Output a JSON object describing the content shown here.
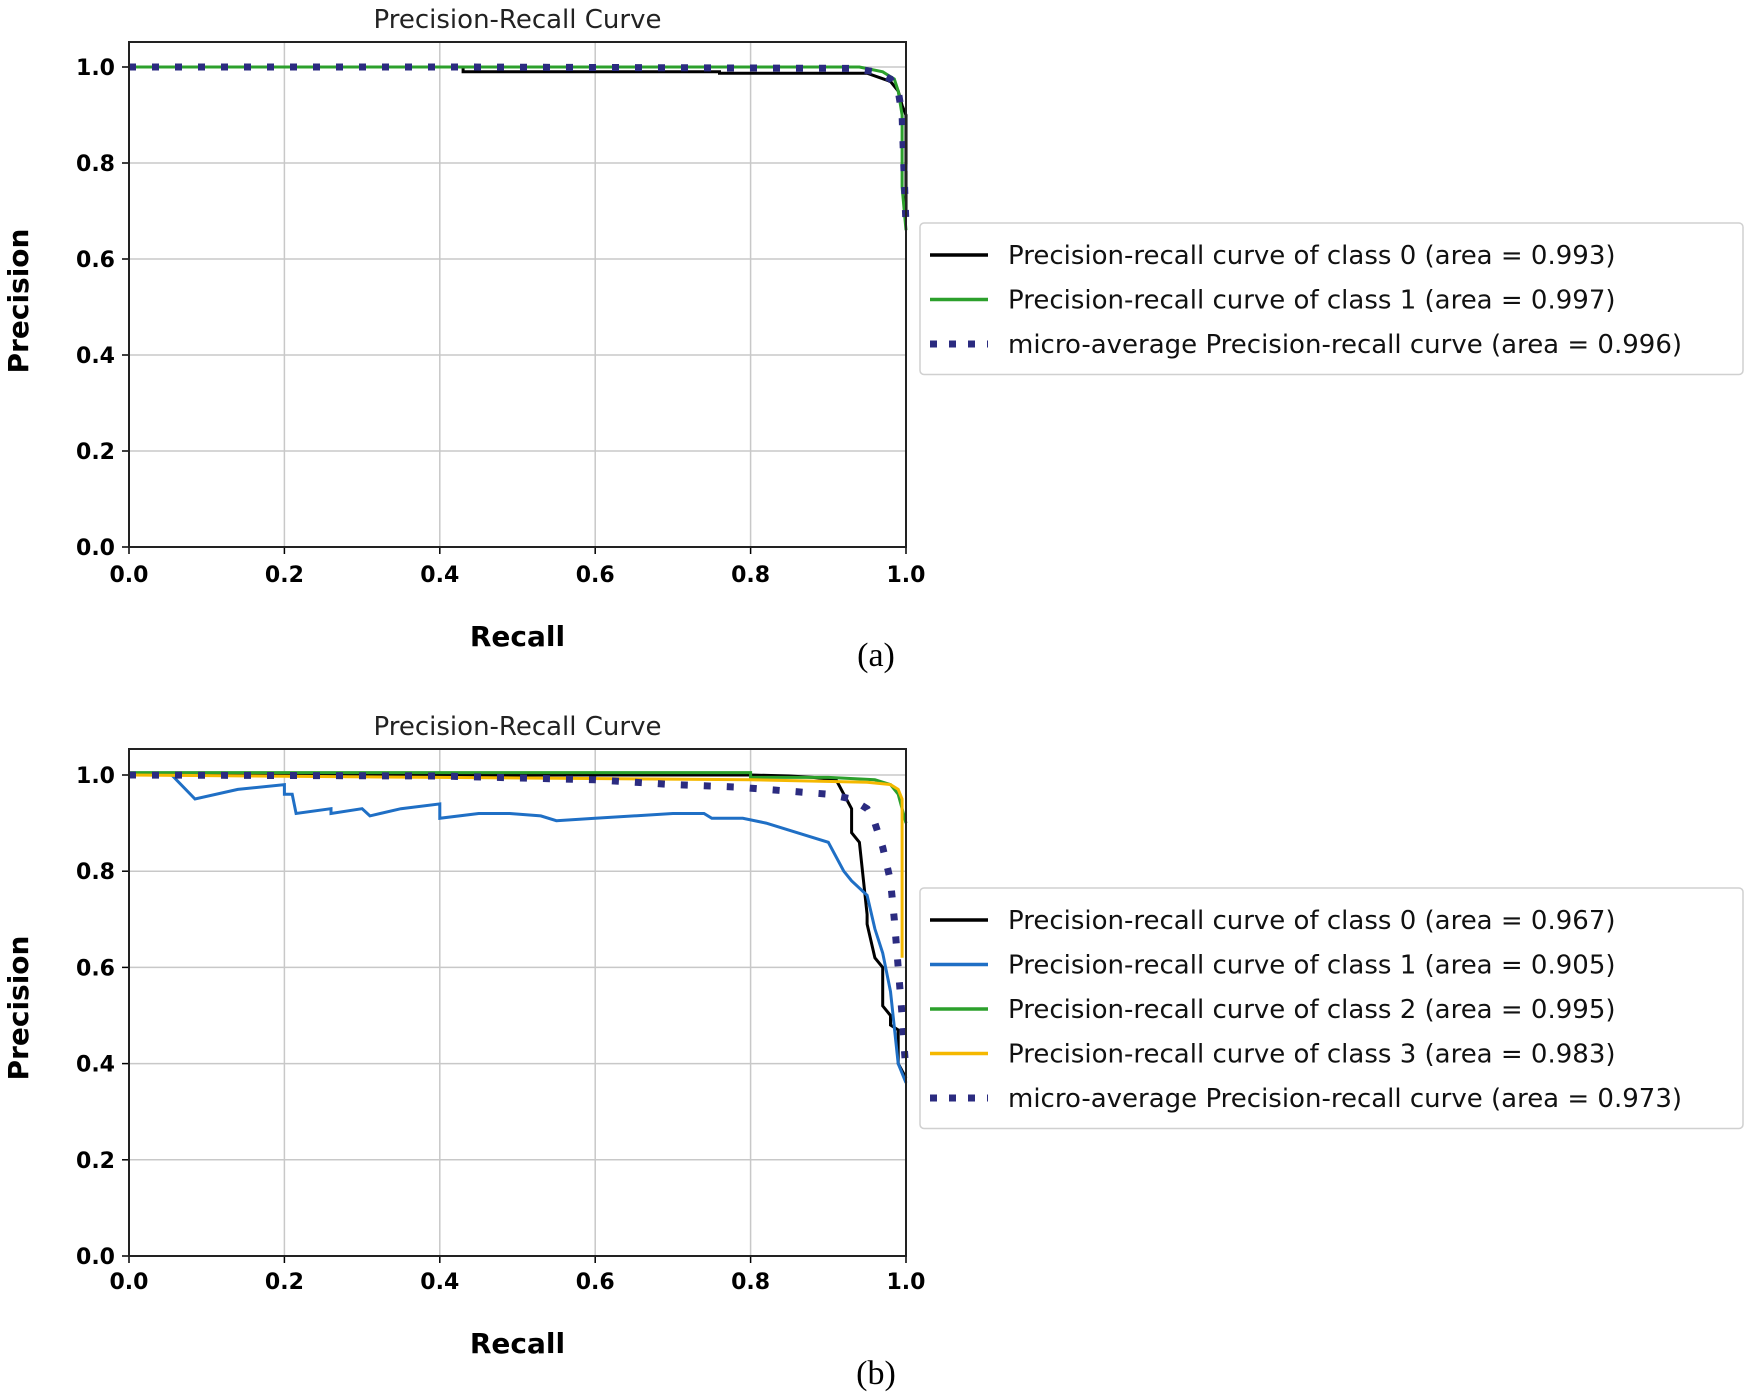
{
  "chart_data": [
    {
      "type": "line",
      "panel": "(a)",
      "title": "Precision-Recall Curve",
      "xlabel": "Recall",
      "ylabel": "Precision",
      "xlim": [
        0,
        1
      ],
      "ylim": [
        0,
        1.05
      ],
      "xticks": [
        "0.0",
        "0.2",
        "0.4",
        "0.6",
        "0.8",
        "1.0"
      ],
      "yticks": [
        "0.0",
        "0.2",
        "0.4",
        "0.6",
        "0.8",
        "1.0"
      ],
      "grid": true,
      "legend_position": "right-outside",
      "series": [
        {
          "name": "Precision-recall curve of class 0 (area = 0.993)",
          "color": "#000000",
          "dash": "solid",
          "x": [
            0,
            0.43,
            0.43,
            0.76,
            0.76,
            0.95,
            0.98,
            0.99,
            0.995,
            1.0,
            1.0
          ],
          "y": [
            1,
            1,
            0.99,
            0.99,
            0.987,
            0.987,
            0.97,
            0.95,
            0.92,
            0.9,
            0.7
          ]
        },
        {
          "name": "Precision-recall curve of class 1 (area = 0.997)",
          "color": "#2ca02c",
          "dash": "solid",
          "x": [
            0,
            0.94,
            0.97,
            0.985,
            0.99,
            0.995,
            0.995,
            1.0
          ],
          "y": [
            1,
            1,
            0.99,
            0.975,
            0.95,
            0.9,
            0.75,
            0.66
          ]
        },
        {
          "name": "micro-average Precision-recall curve (area = 0.996)",
          "color": "#2b2b80",
          "dash": "dotted",
          "x": [
            0,
            0.43,
            0.93,
            0.96,
            0.98,
            0.99,
            0.995,
            0.997,
            1.0
          ],
          "y": [
            1,
            1,
            0.997,
            0.99,
            0.975,
            0.95,
            0.9,
            0.8,
            0.67
          ]
        }
      ]
    },
    {
      "type": "line",
      "panel": "(b)",
      "title": "Precision-Recall Curve",
      "xlabel": "Recall",
      "ylabel": "Precision",
      "xlim": [
        0,
        1
      ],
      "ylim": [
        0,
        1.05
      ],
      "xticks": [
        "0.0",
        "0.2",
        "0.4",
        "0.6",
        "0.8",
        "1.0"
      ],
      "yticks": [
        "0.0",
        "0.2",
        "0.4",
        "0.6",
        "0.8",
        "1.0"
      ],
      "grid": true,
      "legend_position": "right-outside",
      "series": [
        {
          "name": "Precision-recall curve of class 0 (area = 0.967)",
          "color": "#000000",
          "dash": "solid",
          "x": [
            0,
            0.8,
            0.85,
            0.88,
            0.91,
            0.92,
            0.93,
            0.93,
            0.94,
            0.95,
            0.95,
            0.96,
            0.97,
            0.97,
            0.98,
            0.98,
            0.99,
            0.99,
            1.0
          ],
          "y": [
            1,
            1,
            0.998,
            0.995,
            0.99,
            0.96,
            0.93,
            0.88,
            0.86,
            0.71,
            0.69,
            0.62,
            0.6,
            0.52,
            0.5,
            0.48,
            0.47,
            0.4,
            0.37
          ]
        },
        {
          "name": "Precision-recall curve of class 1 (area = 0.905)",
          "color": "#1f6fc5",
          "dash": "solid",
          "x": [
            0,
            0.055,
            0.085,
            0.14,
            0.2,
            0.2,
            0.21,
            0.215,
            0.26,
            0.26,
            0.3,
            0.31,
            0.35,
            0.4,
            0.4,
            0.45,
            0.49,
            0.53,
            0.55,
            0.6,
            0.7,
            0.74,
            0.75,
            0.79,
            0.82,
            0.86,
            0.9,
            0.92,
            0.93,
            0.95,
            0.96,
            0.97,
            0.98,
            0.99,
            1.0
          ],
          "y": [
            1,
            1,
            0.95,
            0.97,
            0.98,
            0.96,
            0.96,
            0.92,
            0.93,
            0.92,
            0.93,
            0.915,
            0.93,
            0.94,
            0.91,
            0.92,
            0.92,
            0.915,
            0.905,
            0.91,
            0.92,
            0.92,
            0.91,
            0.91,
            0.9,
            0.88,
            0.86,
            0.8,
            0.78,
            0.75,
            0.68,
            0.63,
            0.55,
            0.4,
            0.36
          ]
        },
        {
          "name": "Precision-recall curve of class 2 (area = 0.995)",
          "color": "#2ca02c",
          "dash": "solid",
          "x": [
            0,
            0.8,
            0.8,
            0.9,
            0.96,
            0.98,
            0.99,
            1.0
          ],
          "y": [
            1.005,
            1.005,
            0.995,
            0.995,
            0.99,
            0.98,
            0.96,
            0.9
          ]
        },
        {
          "name": "Precision-recall curve of class 3 (area = 0.983)",
          "color": "#f5b800",
          "dash": "solid",
          "x": [
            0,
            0.4,
            0.8,
            0.95,
            0.98,
            0.99,
            0.995,
            0.995
          ],
          "y": [
            1,
            0.995,
            0.99,
            0.985,
            0.98,
            0.97,
            0.95,
            0.62
          ]
        },
        {
          "name": "micro-average Precision-recall curve (area = 0.973)",
          "color": "#2b2b80",
          "dash": "dotted",
          "x": [
            0,
            0.4,
            0.6,
            0.7,
            0.78,
            0.82,
            0.86,
            0.9,
            0.93,
            0.95,
            0.96,
            0.97,
            0.98,
            0.985,
            0.99,
            0.995,
            1.0
          ],
          "y": [
            1,
            0.998,
            0.99,
            0.98,
            0.975,
            0.97,
            0.965,
            0.96,
            0.95,
            0.93,
            0.9,
            0.85,
            0.78,
            0.7,
            0.6,
            0.5,
            0.38
          ]
        }
      ]
    }
  ]
}
